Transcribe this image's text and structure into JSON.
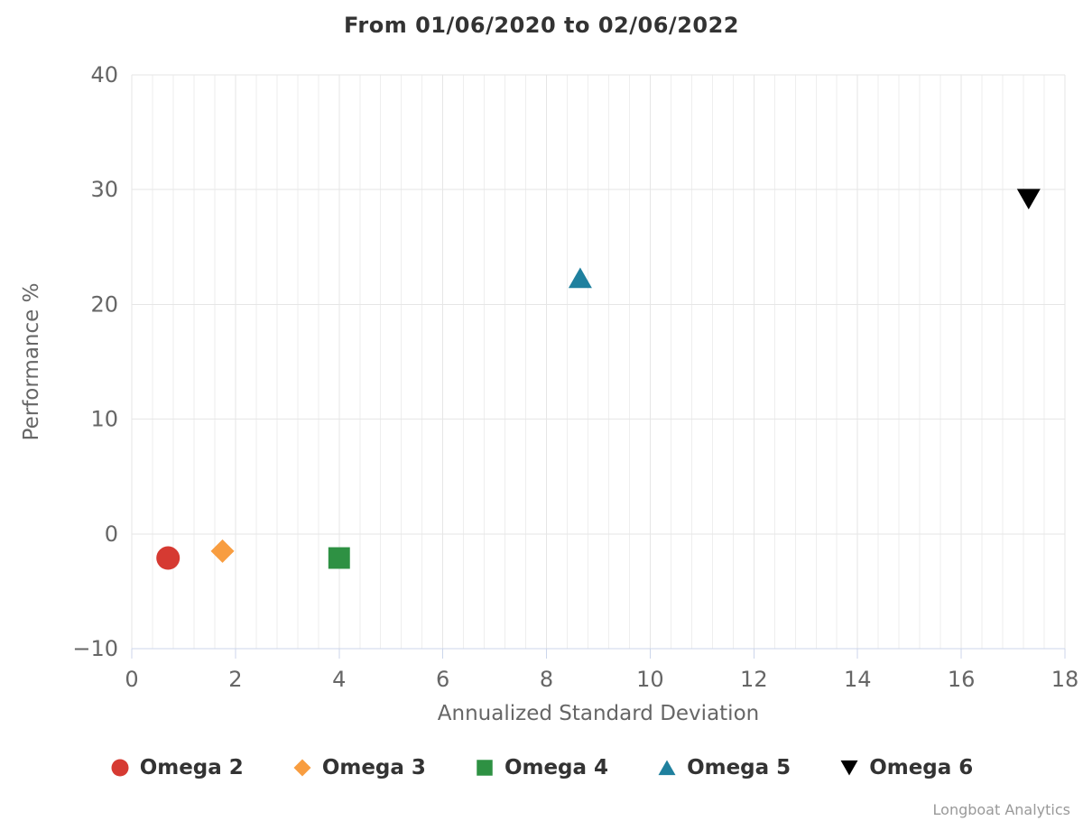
{
  "title": "From 01/06/2020 to 02/06/2022",
  "credit": "Longboat Analytics",
  "style": {
    "background": "#ffffff",
    "title_color": "#333333",
    "tick_label_color": "#666666",
    "axis_title_color": "#666666",
    "legend_text_color": "#333333",
    "credit_color": "#999999",
    "minor_grid_color": "#eeeeee",
    "major_grid_color": "#e6e6e6",
    "axis_line_color": "#ccd6eb"
  },
  "chart_data": {
    "type": "scatter",
    "title": "From 01/06/2020 to 02/06/2022",
    "xlabel": "Annualized Standard Deviation",
    "ylabel": "Performance %",
    "xlim": [
      0,
      18
    ],
    "ylim": [
      -10,
      40
    ],
    "x_ticks": [
      0,
      2,
      4,
      6,
      8,
      10,
      12,
      14,
      16,
      18
    ],
    "y_ticks": [
      -10,
      0,
      10,
      20,
      30,
      40
    ],
    "x_minor_interval": 0.4,
    "grid": true,
    "legend_position": "bottom",
    "series": [
      {
        "name": "Omega 2",
        "marker": "circle",
        "color": "#d63a32",
        "points": [
          {
            "x": 0.7,
            "y": -2.1
          }
        ]
      },
      {
        "name": "Omega 3",
        "marker": "diamond",
        "color": "#f89d40",
        "points": [
          {
            "x": 1.75,
            "y": -1.5
          }
        ]
      },
      {
        "name": "Omega 4",
        "marker": "square",
        "color": "#2e9143",
        "points": [
          {
            "x": 4.0,
            "y": -2.1
          }
        ]
      },
      {
        "name": "Omega 5",
        "marker": "triangle-up",
        "color": "#1f809e",
        "points": [
          {
            "x": 8.65,
            "y": 22.3
          }
        ]
      },
      {
        "name": "Omega 6",
        "marker": "triangle-down",
        "color": "#000000",
        "points": [
          {
            "x": 17.3,
            "y": 29.2
          }
        ]
      }
    ]
  }
}
